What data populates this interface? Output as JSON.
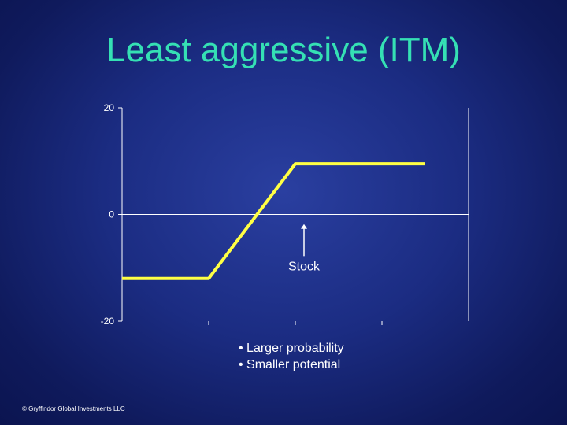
{
  "title": "Least aggressive (ITM)",
  "chart_data": {
    "type": "line",
    "title": "",
    "xlabel": "",
    "ylabel": "",
    "ylim": [
      -20,
      20
    ],
    "yticks": [
      20,
      0,
      -20
    ],
    "y_tick_labels": [
      "20",
      "0",
      "-20"
    ],
    "x": [
      0,
      1,
      2,
      3.5
    ],
    "series": [
      {
        "values": [
          -12,
          -12,
          9.5,
          9.5
        ],
        "color": "#ffff44"
      }
    ],
    "grid": false,
    "annotation": "Stock",
    "colors": {
      "axis": "#ffffff",
      "line": "#ffff44"
    }
  },
  "bullets": [
    "• Larger probability",
    "• Smaller potential"
  ],
  "footer": "© Gryffindor Global Investments LLC"
}
